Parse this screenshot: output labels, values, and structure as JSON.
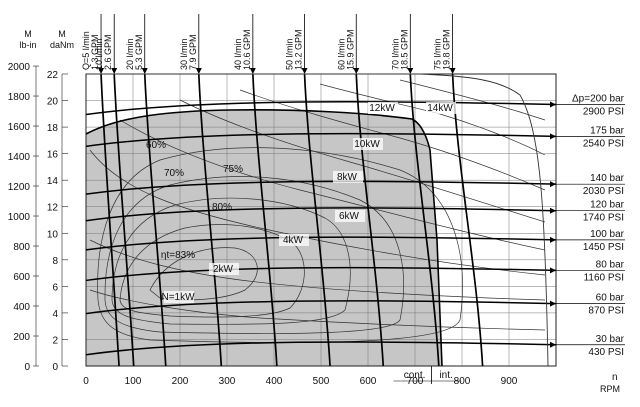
{
  "chart_data": {
    "type": "line",
    "x_axis": {
      "label": "RPM",
      "unit_label": "n",
      "range": [
        0,
        1000
      ],
      "ticks": [
        0,
        100,
        200,
        300,
        400,
        500,
        600,
        700,
        800,
        900
      ]
    },
    "y_axis_left_lbin": {
      "header_top": "M",
      "header_unit": "lb-in",
      "range": [
        0,
        2000
      ],
      "ticks": [
        0,
        200,
        400,
        600,
        800,
        1000,
        1200,
        1400,
        1600,
        1800,
        2000
      ]
    },
    "y_axis_left_danm": {
      "header_top": "M",
      "header_unit": "daNm",
      "range": [
        0,
        22
      ],
      "ticks": [
        0,
        2,
        4,
        6,
        8,
        10,
        12,
        14,
        16,
        18,
        20,
        22
      ]
    },
    "grid": true,
    "shaded_region": "continuous operation",
    "region_labels": {
      "cont": "cont.",
      "int": "int."
    },
    "cont_int_boundary_rpm": 735,
    "flow_lines": [
      {
        "label": [
          "Q=5 l/min",
          "1.3 GPM"
        ],
        "rpm_at_top": 32
      },
      {
        "label": [
          "10 l/min",
          "2.6 GPM"
        ],
        "rpm_at_top": 60
      },
      {
        "label": [
          "20 l/min",
          "5.3 GPM"
        ],
        "rpm_at_top": 125
      },
      {
        "label": [
          "30 l/min",
          "7.9 GPM"
        ],
        "rpm_at_top": 240
      },
      {
        "label": [
          "40 l/min",
          "10.6 GPM"
        ],
        "rpm_at_top": 355
      },
      {
        "label": [
          "50 l/min",
          "13.2 GPM"
        ],
        "rpm_at_top": 465
      },
      {
        "label": [
          "60 l/min",
          "15.9 GPM"
        ],
        "rpm_at_top": 575
      },
      {
        "label": [
          "70 l/min",
          "18.5 GPM"
        ],
        "rpm_at_top": 690
      },
      {
        "label": [
          "75 l/min",
          "19.8 GPM"
        ],
        "rpm_at_top": 780
      }
    ],
    "pressure_lines": [
      {
        "label": [
          "Δp=200 bar",
          "2900 PSI"
        ],
        "torque_danm": 19.7
      },
      {
        "label": [
          "175 bar",
          "2540 PSI"
        ],
        "torque_danm": 17.3
      },
      {
        "label": [
          "140 bar",
          "2030 PSI"
        ],
        "torque_danm": 13.7
      },
      {
        "label": [
          "120 bar",
          "1740 PSI"
        ],
        "torque_danm": 11.7
      },
      {
        "label": [
          "100 bar",
          "1450 PSI"
        ],
        "torque_danm": 9.5
      },
      {
        "label": [
          "80 bar",
          "1160 PSI"
        ],
        "torque_danm": 7.2
      },
      {
        "label": [
          "60 bar",
          "870 PSI"
        ],
        "torque_danm": 4.7
      },
      {
        "label": [
          "30 bar",
          "430 PSI"
        ],
        "torque_danm": 1.6
      }
    ],
    "power_labels": [
      "12kW",
      "14kW",
      "10kW",
      "8kW",
      "6kW",
      "4kW",
      "2kW",
      "N=1kW"
    ],
    "efficiency_labels": [
      "60%",
      "70%",
      "75%",
      "80%",
      "ηt=83%"
    ]
  }
}
